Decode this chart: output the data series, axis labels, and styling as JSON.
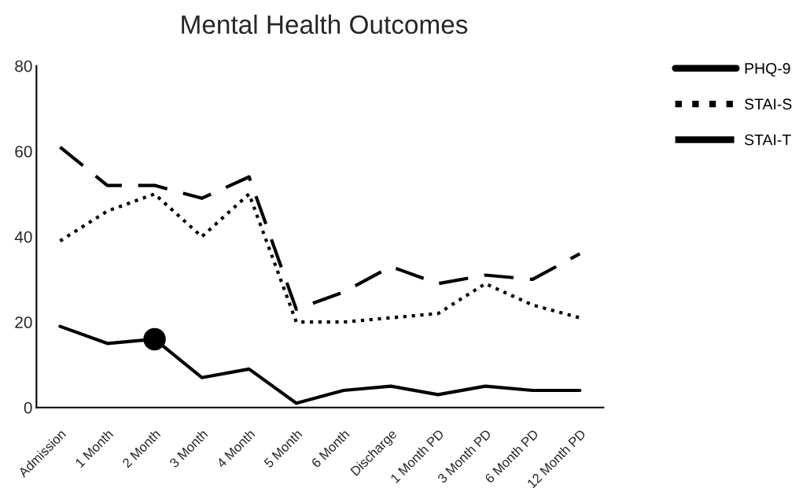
{
  "chart_data": {
    "type": "line",
    "title": "Mental Health Outcomes",
    "categories": [
      "Admission",
      "1 Month",
      "2 Month",
      "3 Month",
      "4 Month",
      "5 Month",
      "6 Month",
      "Discharge",
      "1 Month PD",
      "3 Month PD",
      "6 Month PD",
      "12 Month PD"
    ],
    "series": [
      {
        "name": "PHQ-9",
        "color": "#000000",
        "line_style": "solid",
        "values": [
          19,
          15,
          16,
          7,
          9,
          1,
          4,
          5,
          3,
          5,
          4,
          4
        ]
      },
      {
        "name": "STAI-S",
        "color": "#000000",
        "line_style": "dotted",
        "values": [
          39,
          46,
          50,
          40,
          50,
          20,
          20,
          21,
          22,
          29,
          24,
          21
        ]
      },
      {
        "name": "STAI-T",
        "color": "#000000",
        "line_style": "dashed",
        "values": [
          61,
          52,
          52,
          49,
          54,
          23,
          27,
          33,
          29,
          31,
          30,
          36
        ]
      },
      {
        "type": "scatter",
        "color": "#000000",
        "marker": "circle",
        "x": [
          "2 Month"
        ],
        "values": [
          16
        ]
      }
    ],
    "ylim": [
      0,
      80
    ],
    "yticks": [
      0,
      20,
      40,
      60,
      80
    ],
    "grid": false,
    "legend": "top right"
  }
}
